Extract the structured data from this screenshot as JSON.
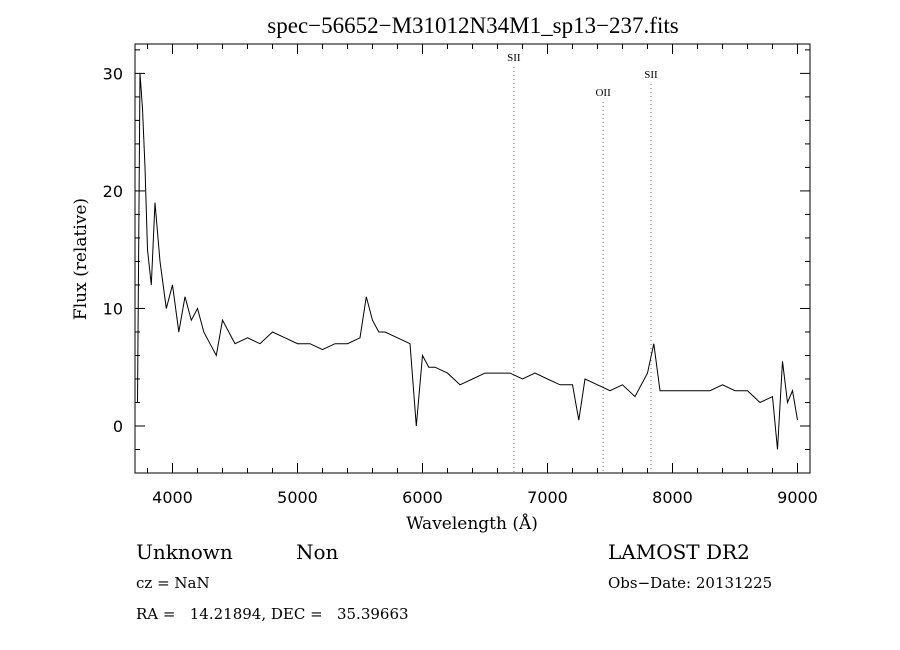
{
  "chart_data": {
    "type": "line",
    "title": "spec−56652−M31012N34M1_sp13−237.fits",
    "xlabel": "Wavelength (Å)",
    "ylabel": "Flux (relative)",
    "xlim": [
      3700,
      9100
    ],
    "ylim": [
      -4,
      32.5
    ],
    "xticks": [
      4000,
      5000,
      6000,
      7000,
      8000,
      9000
    ],
    "yticks": [
      0,
      10,
      20,
      30
    ],
    "grid": false,
    "legend": "none",
    "line_color": "#000000",
    "marker_color": "#777777",
    "series": [
      {
        "x": [
          3720,
          3740,
          3760,
          3780,
          3800,
          3830,
          3860,
          3900,
          3950,
          4000,
          4050,
          4100,
          4150,
          4200,
          4250,
          4300,
          4350,
          4400,
          4450,
          4500,
          4600,
          4700,
          4800,
          4900,
          5000,
          5100,
          5200,
          5300,
          5400,
          5500,
          5550,
          5600,
          5650,
          5700,
          5800,
          5900,
          5950,
          6000,
          6050,
          6100,
          6200,
          6300,
          6400,
          6500,
          6600,
          6700,
          6800,
          6900,
          7000,
          7100,
          7200,
          7250,
          7300,
          7400,
          7500,
          7600,
          7700,
          7800,
          7850,
          7900,
          8000,
          8100,
          8200,
          8300,
          8400,
          8500,
          8600,
          8700,
          8800,
          8840,
          8880,
          8920,
          8960,
          9000
        ],
        "y": [
          2,
          30,
          27,
          22,
          15,
          12,
          19,
          14,
          10,
          12,
          8,
          11,
          9,
          10,
          8,
          7,
          6,
          9,
          8,
          7,
          7.5,
          7,
          8,
          7.5,
          7,
          7,
          6.5,
          7,
          7,
          7.5,
          11,
          9,
          8,
          8,
          7.5,
          7,
          0,
          6,
          5,
          5,
          4.5,
          3.5,
          4,
          4.5,
          4.5,
          4.5,
          4,
          4.5,
          4,
          3.5,
          3.5,
          0.5,
          4,
          3.5,
          3,
          3.5,
          2.5,
          4.5,
          7,
          3,
          3,
          3,
          3,
          3,
          3.5,
          3,
          3,
          2,
          2.5,
          -2,
          5.5,
          2,
          3,
          0.5
        ]
      }
    ],
    "markers": [
      {
        "label": "SII",
        "x": 6731
      },
      {
        "label": "OII",
        "x": 7445
      },
      {
        "label": "SII",
        "x": 7828
      }
    ]
  },
  "info": {
    "class": "Unknown",
    "subclass": "Non",
    "cz": "cz = NaN",
    "radec": "RA =   14.21894, DEC =   35.39663",
    "survey": "LAMOST DR2",
    "obsdate": "Obs−Date: 20131225"
  }
}
